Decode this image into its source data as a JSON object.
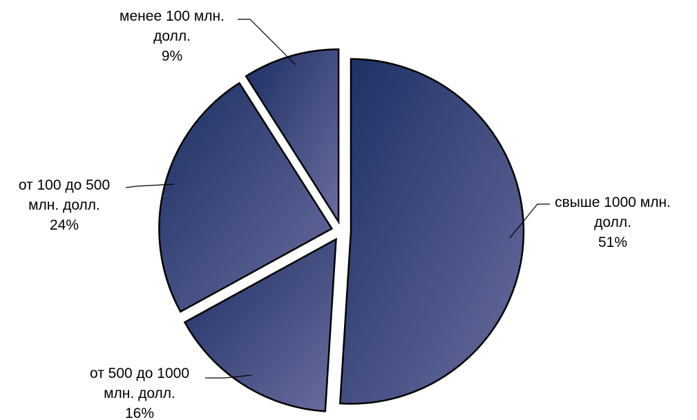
{
  "chart_data": {
    "type": "pie",
    "title": "",
    "exploded": true,
    "slices": [
      {
        "name": "свыше 1000 млн.",
        "name2": "долл.",
        "percent": "51%",
        "value": 51
      },
      {
        "name": "от 500 до 1000",
        "name2": "млн. долл.",
        "percent": "16%",
        "value": 16
      },
      {
        "name": "от 100 до 500",
        "name2": "млн. долл.",
        "percent": "24%",
        "value": 24
      },
      {
        "name": "менее 100 млн.",
        "name2": "долл.",
        "percent": "9%",
        "value": 9
      }
    ],
    "colors": {
      "gradient_dark": "#1c2f63",
      "gradient_light": "#6a6c9e",
      "edge": "#000000"
    }
  }
}
